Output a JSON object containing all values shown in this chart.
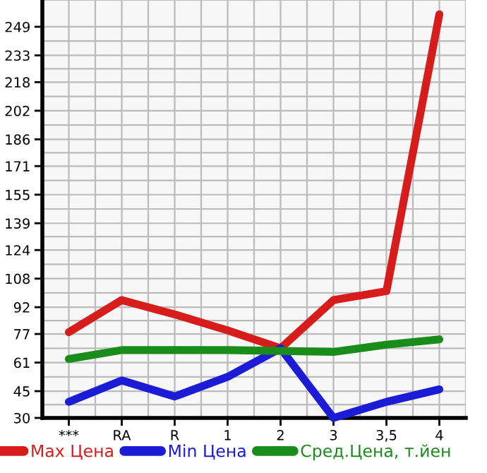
{
  "chart_data": {
    "type": "line",
    "categories": [
      "***",
      "RA",
      "R",
      "1",
      "2",
      "3",
      "3,5",
      "4"
    ],
    "series": [
      {
        "name": "Max Цена",
        "color": "#d71c1c",
        "values": [
          78,
          96,
          88,
          79,
          69,
          96,
          101,
          256
        ]
      },
      {
        "name": "Min Цена",
        "color": "#1c1cd7",
        "values": [
          39,
          51,
          42,
          53,
          69,
          30,
          39,
          46
        ]
      },
      {
        "name": "Сред.Цена, т.йен",
        "color": "#1a8c1a",
        "values": [
          63,
          68,
          68,
          68,
          67.5,
          67,
          71,
          74
        ]
      }
    ],
    "ylim": [
      30,
      264
    ],
    "yticks": [
      30,
      45,
      61,
      77,
      92,
      108,
      124,
      139,
      155,
      171,
      186,
      202,
      218,
      233,
      249
    ],
    "grid": true,
    "legend": "bottom",
    "marker": "none",
    "line_style": "solid"
  }
}
